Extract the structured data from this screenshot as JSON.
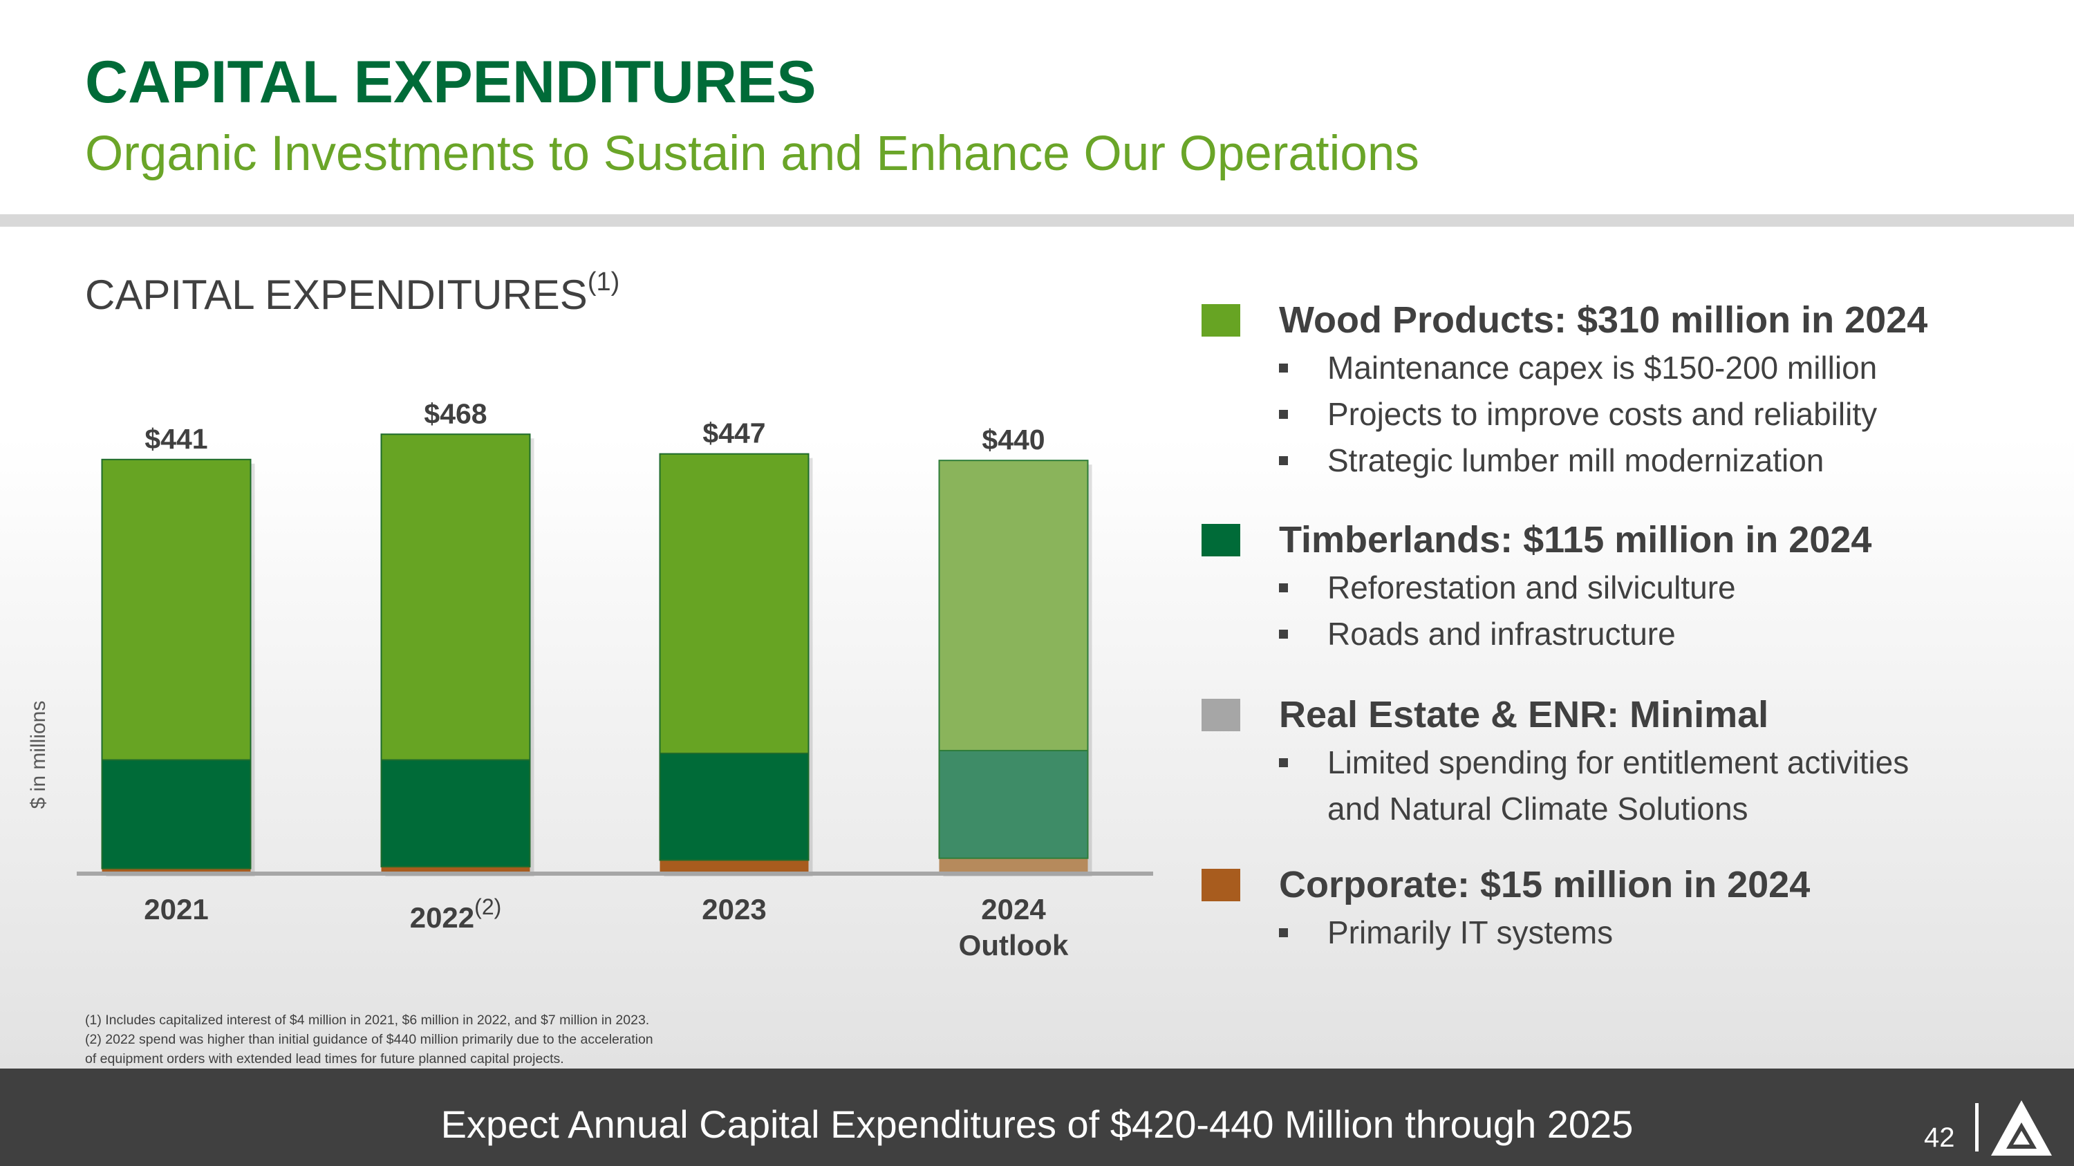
{
  "header": {
    "title": "CAPITAL EXPENDITURES",
    "subtitle": "Organic Investments to Sustain and Enhance Our Operations"
  },
  "chart_section": {
    "heading": "CAPITAL EXPENDITURES",
    "heading_note": "(1)",
    "y_axis_label": "$ in millions"
  },
  "chart_data": {
    "type": "bar",
    "stacked": true,
    "title": "CAPITAL EXPENDITURES",
    "ylabel": "$ in millions",
    "categories": [
      "2021",
      "2022",
      "2023",
      "2024"
    ],
    "category_notes": [
      "",
      "(2)",
      "",
      ""
    ],
    "category_sublabels": [
      "",
      "",
      "",
      "Outlook"
    ],
    "totals": [
      "$441",
      "$468",
      "$447",
      "$440"
    ],
    "series": [
      {
        "name": "Corporate",
        "values": [
          4,
          6,
          13,
          15
        ],
        "color": "#A85C1E",
        "outlook_color": "#B68A5C"
      },
      {
        "name": "Timberlands",
        "values": [
          116,
          114,
          114,
          115
        ],
        "color": "#006B38",
        "outlook_color": "#3E8C67"
      },
      {
        "name": "Wood Products",
        "values": [
          321,
          348,
          320,
          310
        ],
        "color": "#67A423",
        "outlook_color": "#8AB45B"
      }
    ],
    "ylim": [
      0,
      480
    ],
    "grid": false,
    "legend_position": "right"
  },
  "legend": [
    {
      "color": "#67A423",
      "heading": "Wood Products: $310 million in 2024",
      "bullets": [
        "Maintenance capex is $150-200 million",
        "Projects to improve costs and reliability",
        "Strategic lumber mill modernization"
      ]
    },
    {
      "color": "#006B38",
      "heading": "Timberlands: $115 million in 2024",
      "bullets": [
        "Reforestation and silviculture",
        "Roads and infrastructure"
      ]
    },
    {
      "color": "#A6A6A6",
      "heading": "Real Estate & ENR: Minimal",
      "bullets": [
        "Limited spending for entitlement activities",
        "and Natural Climate Solutions"
      ]
    },
    {
      "color": "#A85C1E",
      "heading": "Corporate: $15 million in 2024",
      "bullets": [
        "Primarily IT systems"
      ]
    }
  ],
  "footnotes": [
    "(1) Includes capitalized interest of $4 million in 2021, $6 million in 2022, and $7 million in 2023.",
    "(2) 2022 spend was higher than initial guidance of $440 million primarily due to the acceleration",
    "of equipment orders with extended lead times for future planned capital projects."
  ],
  "footer": {
    "text": "Expect Annual Capital Expenditures of $420-440 Million through 2025",
    "page_number": "42"
  }
}
